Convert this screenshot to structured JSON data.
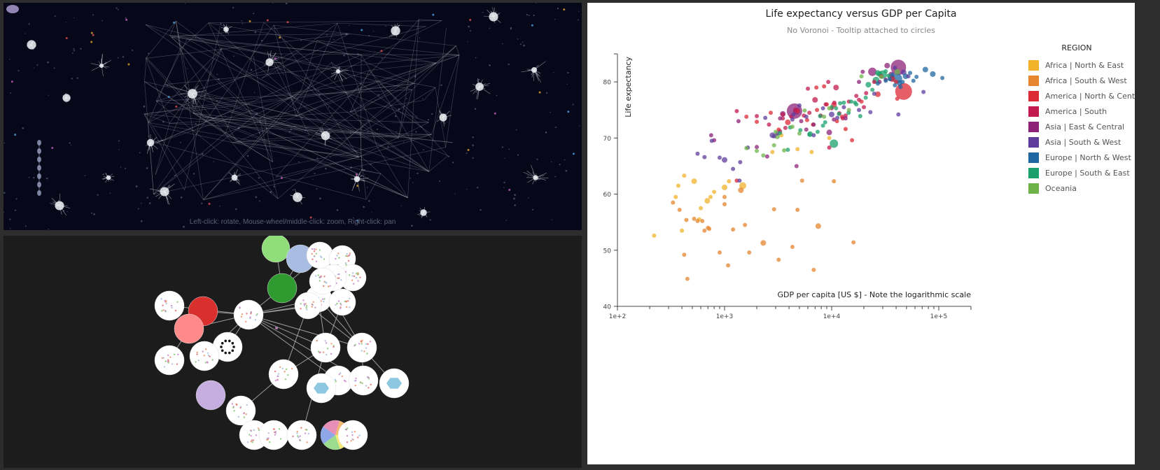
{
  "space_view": {
    "hint": "Left-click: rotate, Mouse-wheel/middle-click: zoom, Right-click: pan"
  },
  "graph_view": {},
  "chart": {
    "title": "Life expectancy versus GDP per Capita",
    "subtitle": "No Voronoi - Tooltip attached to circles",
    "legend_title": "REGION",
    "legend": [
      {
        "label": "Africa | North & East",
        "color": "#f2b32b"
      },
      {
        "label": "Africa | South & West",
        "color": "#e6862f"
      },
      {
        "label": "America | North & Central",
        "color": "#dc2a35"
      },
      {
        "label": "America | South",
        "color": "#c11b4f"
      },
      {
        "label": "Asia | East & Central",
        "color": "#8e2178"
      },
      {
        "label": "Asia | South & West",
        "color": "#5e3c9c"
      },
      {
        "label": "Europe | North & West",
        "color": "#1f67a0"
      },
      {
        "label": "Europe | South & East",
        "color": "#1ba06b"
      },
      {
        "label": "Oceania",
        "color": "#6db34a"
      }
    ]
  },
  "chart_data": {
    "type": "scatter",
    "title": "Life expectancy versus GDP per Capita",
    "subtitle": "No Voronoi - Tooltip attached to circles",
    "xlabel": "GDP per capita [US $] - Note the logarithmic scale",
    "ylabel": "Life expectancy",
    "x_scale": "log",
    "xlim": [
      100,
      200000
    ],
    "ylim": [
      40,
      85
    ],
    "x_ticks": [
      "1e+2",
      "1e+3",
      "1e+4",
      "1e+5"
    ],
    "y_ticks": [
      "40",
      "50",
      "60",
      "70",
      "80"
    ],
    "legend_position": "right",
    "series": [
      {
        "name": "Africa | North & East",
        "points": [
          [
            220,
            52.6
          ],
          [
            350,
            59.5
          ],
          [
            370,
            61.5
          ],
          [
            400,
            53.5
          ],
          [
            420,
            63.3
          ],
          [
            520,
            62.3
          ],
          [
            580,
            55.5
          ],
          [
            600,
            57.5
          ],
          [
            690,
            58.8
          ],
          [
            740,
            59.5
          ],
          [
            800,
            60.4
          ],
          [
            1000,
            61.2
          ],
          [
            1100,
            62.3
          ],
          [
            1480,
            61.5
          ],
          [
            6500,
            67.5
          ],
          [
            4800,
            68
          ],
          [
            9500,
            70
          ],
          [
            3400,
            70.5
          ],
          [
            2800,
            67.5
          ]
        ],
        "sizes": [
          3,
          3,
          3,
          3,
          3,
          4,
          3,
          3,
          4,
          3,
          3,
          4,
          3,
          5,
          3,
          3,
          3,
          3,
          3
        ]
      },
      {
        "name": "Africa | South & West",
        "points": [
          [
            330,
            58.5
          ],
          [
            380,
            57.2
          ],
          [
            420,
            49.2
          ],
          [
            440,
            55.4
          ],
          [
            450,
            44.9
          ],
          [
            520,
            55.6
          ],
          [
            560,
            55.2
          ],
          [
            620,
            55.2
          ],
          [
            650,
            53.5
          ],
          [
            700,
            54.0
          ],
          [
            900,
            49.6
          ],
          [
            1000,
            58.2
          ],
          [
            1080,
            47.3
          ],
          [
            1200,
            53.7
          ],
          [
            1420,
            60.7
          ],
          [
            1550,
            54.5
          ],
          [
            1700,
            49.6
          ],
          [
            2300,
            51.3
          ],
          [
            2900,
            57.3
          ],
          [
            3200,
            48.3
          ],
          [
            4300,
            50.6
          ],
          [
            4800,
            57.2
          ],
          [
            5300,
            62.4
          ],
          [
            6800,
            46.5
          ],
          [
            7500,
            54.3
          ],
          [
            10500,
            62.3
          ],
          [
            16000,
            51.4
          ],
          [
            1000,
            59.5
          ],
          [
            720,
            53.8
          ]
        ],
        "sizes": [
          3,
          3,
          3,
          3,
          3,
          3,
          3,
          3,
          3,
          3,
          3,
          3,
          3,
          3,
          4,
          3,
          3,
          4,
          3,
          3,
          3,
          3,
          3,
          3,
          4,
          3,
          3,
          3,
          3
        ]
      },
      {
        "name": "America | North & Central",
        "points": [
          [
            1300,
            62.4
          ],
          [
            1600,
            73.8
          ],
          [
            2000,
            72.9
          ],
          [
            2700,
            74.5
          ],
          [
            3200,
            71.5
          ],
          [
            3900,
            72.8
          ],
          [
            4800,
            74.8
          ],
          [
            5900,
            73.2
          ],
          [
            6700,
            72.4
          ],
          [
            7200,
            79.0
          ],
          [
            8500,
            79.2
          ],
          [
            9000,
            76.0
          ],
          [
            10500,
            75.9
          ],
          [
            11200,
            73.0
          ],
          [
            12500,
            73.8
          ],
          [
            13500,
            71.6
          ],
          [
            15500,
            69.6
          ],
          [
            19000,
            76.5
          ],
          [
            27000,
            77.8
          ],
          [
            47000,
            78.3
          ],
          [
            37000,
            80.5
          ],
          [
            40000,
            80.0
          ],
          [
            41000,
            77.0
          ],
          [
            7300,
            75.0
          ]
        ],
        "sizes": [
          3,
          3,
          3,
          3,
          3,
          4,
          3,
          3,
          3,
          3,
          3,
          3,
          4,
          3,
          3,
          3,
          3,
          3,
          4,
          12,
          4,
          3,
          3,
          3
        ]
      },
      {
        "name": "America | South",
        "points": [
          [
            1300,
            74.8
          ],
          [
            2000,
            73.9
          ],
          [
            2600,
            72.4
          ],
          [
            3500,
            74.2
          ],
          [
            3700,
            71.8
          ],
          [
            4200,
            73.8
          ],
          [
            4600,
            75.0
          ],
          [
            5500,
            74.0
          ],
          [
            6200,
            74.5
          ],
          [
            7000,
            76.8
          ],
          [
            7900,
            74.0
          ],
          [
            8800,
            76.0
          ],
          [
            10000,
            75.3
          ],
          [
            11000,
            79.0
          ],
          [
            9500,
            68.3
          ],
          [
            11800,
            74.4
          ],
          [
            12700,
            73.5
          ],
          [
            13500,
            74.0
          ],
          [
            14500,
            76.5
          ],
          [
            17000,
            77.5
          ],
          [
            18000,
            76.8
          ],
          [
            20000,
            75.5
          ],
          [
            21000,
            78.0
          ],
          [
            25000,
            80.0
          ],
          [
            29000,
            81.0
          ],
          [
            9300,
            80.0
          ],
          [
            10600,
            76.3
          ],
          [
            6000,
            78.8
          ],
          [
            3500,
            73.5
          ],
          [
            3300,
            71.2
          ]
        ],
        "sizes": [
          3,
          3,
          3,
          3,
          3,
          3,
          3,
          3,
          3,
          4,
          3,
          3,
          3,
          4,
          3,
          3,
          3,
          3,
          3,
          3,
          3,
          3,
          3,
          3,
          3,
          3,
          3,
          3,
          3,
          3
        ]
      },
      {
        "name": "Asia | East & Central",
        "points": [
          [
            750,
            70.5
          ],
          [
            800,
            69.6
          ],
          [
            1350,
            73.0
          ],
          [
            2000,
            68.4
          ],
          [
            3300,
            73.5
          ],
          [
            3500,
            74.3
          ],
          [
            4500,
            74.8
          ],
          [
            4700,
            74.8
          ],
          [
            5200,
            73.0
          ],
          [
            6800,
            72.4
          ],
          [
            9500,
            71.0
          ],
          [
            10500,
            73.3
          ],
          [
            13500,
            73.5
          ],
          [
            24000,
            81.8
          ],
          [
            42000,
            82.6
          ],
          [
            36000,
            81.3
          ],
          [
            28000,
            80.0
          ],
          [
            32000,
            80.4
          ],
          [
            19500,
            81.8
          ],
          [
            33000,
            82.9
          ],
          [
            18000,
            80.0
          ],
          [
            2500,
            66.7
          ],
          [
            5800,
            71.5
          ],
          [
            4700,
            65.0
          ]
        ],
        "sizes": [
          3,
          3,
          3,
          3,
          3,
          4,
          11,
          5,
          3,
          3,
          4,
          3,
          3,
          6,
          11,
          4,
          3,
          3,
          3,
          4,
          3,
          3,
          3,
          3
        ]
      },
      {
        "name": "Asia | South & West",
        "points": [
          [
            560,
            67.2
          ],
          [
            650,
            66.6
          ],
          [
            760,
            69.5
          ],
          [
            900,
            66.5
          ],
          [
            1000,
            66.1
          ],
          [
            1200,
            64.5
          ],
          [
            1400,
            65.7
          ],
          [
            1650,
            68.3
          ],
          [
            2400,
            73.6
          ],
          [
            2800,
            70.5
          ],
          [
            3100,
            70.8
          ],
          [
            4400,
            74.2
          ],
          [
            5000,
            75.8
          ],
          [
            5800,
            73.8
          ],
          [
            6800,
            70.5
          ],
          [
            8300,
            75.3
          ],
          [
            10000,
            74.2
          ],
          [
            11300,
            73.6
          ],
          [
            13000,
            75.5
          ],
          [
            18000,
            75.0
          ],
          [
            23000,
            74.6
          ],
          [
            42000,
            74.2
          ],
          [
            72000,
            78.2
          ],
          [
            39000,
            82.5
          ],
          [
            47000,
            81.7
          ],
          [
            52000,
            81.0
          ],
          [
            25000,
            77.9
          ],
          [
            1380,
            62.4
          ],
          [
            4300,
            73.3
          ],
          [
            2900,
            70.3
          ]
        ],
        "sizes": [
          3,
          3,
          3,
          3,
          4,
          3,
          3,
          3,
          3,
          4,
          3,
          3,
          3,
          3,
          3,
          3,
          4,
          3,
          3,
          3,
          3,
          3,
          3,
          3,
          4,
          3,
          3,
          3,
          3,
          3
        ]
      },
      {
        "name": "Europe | North & West",
        "points": [
          [
            32000,
            80.2
          ],
          [
            35000,
            80.5
          ],
          [
            36000,
            80.7
          ],
          [
            37000,
            81.3
          ],
          [
            39000,
            79.4
          ],
          [
            41000,
            80.6
          ],
          [
            43000,
            79.8
          ],
          [
            46000,
            80.0
          ],
          [
            49000,
            81.0
          ],
          [
            54000,
            81.6
          ],
          [
            62000,
            80.9
          ],
          [
            75000,
            82.2
          ],
          [
            88000,
            81.4
          ],
          [
            108000,
            80.7
          ],
          [
            27000,
            79.7
          ],
          [
            44000,
            79.1
          ],
          [
            58000,
            80.2
          ]
        ],
        "sizes": [
          3,
          3,
          5,
          3,
          3,
          7,
          4,
          3,
          4,
          3,
          3,
          4,
          4,
          3,
          3,
          3,
          3
        ]
      },
      {
        "name": "Europe | South & East",
        "points": [
          [
            3300,
            70.9
          ],
          [
            4100,
            71.9
          ],
          [
            5100,
            71.4
          ],
          [
            6300,
            70.7
          ],
          [
            7800,
            73.9
          ],
          [
            8700,
            72.8
          ],
          [
            10000,
            75.5
          ],
          [
            10500,
            69.0
          ],
          [
            12000,
            76.2
          ],
          [
            13000,
            76.3
          ],
          [
            14400,
            74.5
          ],
          [
            15200,
            76.5
          ],
          [
            17000,
            76.0
          ],
          [
            18500,
            73.9
          ],
          [
            20800,
            77.2
          ],
          [
            22000,
            79.5
          ],
          [
            26000,
            80.3
          ],
          [
            28000,
            81.4
          ],
          [
            30000,
            81.3
          ],
          [
            32000,
            81.9
          ],
          [
            34000,
            81.1
          ],
          [
            24000,
            78.6
          ],
          [
            16500,
            76.3
          ],
          [
            6200,
            70.6
          ],
          [
            3900,
            67.9
          ],
          [
            11700,
            74.3
          ],
          [
            8300,
            72.2
          ],
          [
            27000,
            81.6
          ],
          [
            7400,
            71.1
          ],
          [
            11000,
            75.3
          ]
        ],
        "sizes": [
          3,
          3,
          3,
          4,
          3,
          3,
          3,
          6,
          3,
          3,
          3,
          3,
          3,
          3,
          3,
          4,
          5,
          4,
          6,
          3,
          3,
          3,
          3,
          3,
          3,
          3,
          3,
          4,
          3,
          3
        ]
      },
      {
        "name": "Oceania",
        "points": [
          [
            1600,
            68.2
          ],
          [
            2300,
            66.9
          ],
          [
            2900,
            68.7
          ],
          [
            3100,
            70.3
          ],
          [
            3600,
            67.8
          ],
          [
            4300,
            72.0
          ],
          [
            5600,
            74.9
          ],
          [
            8500,
            73.8
          ],
          [
            14500,
            75.0
          ],
          [
            19000,
            81.0
          ],
          [
            29000,
            80.9
          ],
          [
            41000,
            81.8
          ],
          [
            2000,
            67.7
          ],
          [
            3000,
            71.1
          ],
          [
            5000,
            70.8
          ],
          [
            9500,
            75.3
          ]
        ],
        "sizes": [
          3,
          3,
          3,
          4,
          3,
          3,
          3,
          3,
          3,
          3,
          3,
          4,
          3,
          3,
          3,
          3
        ]
      }
    ]
  }
}
